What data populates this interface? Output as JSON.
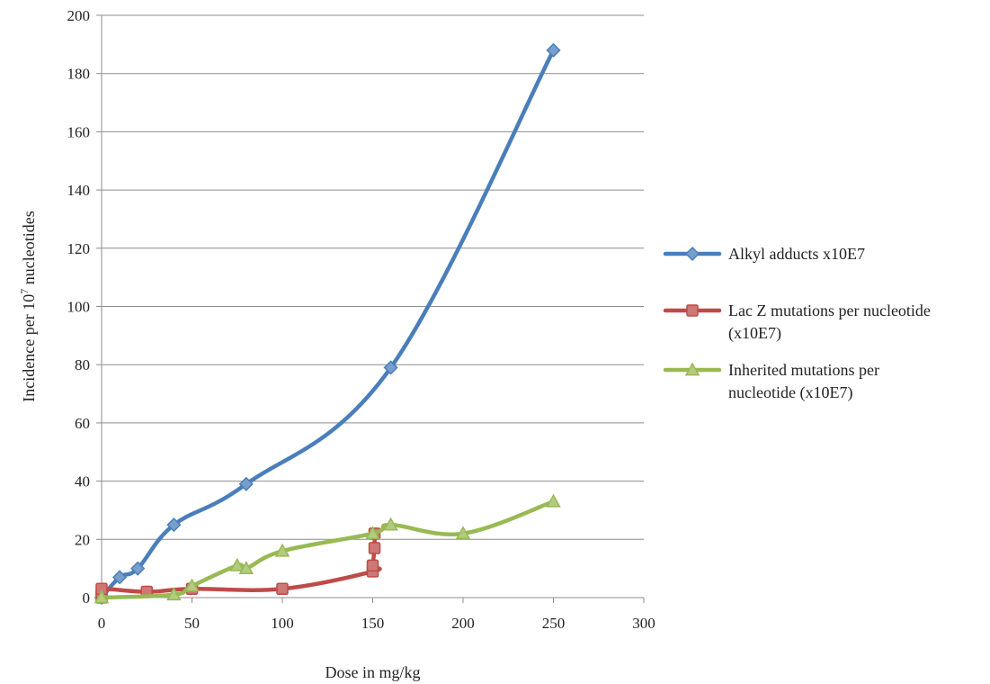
{
  "chart_data": {
    "type": "line",
    "title": "",
    "xlabel": "Dose in mg/kg",
    "ylabel": {
      "prefix": "Incidence per 10",
      "superscript": "7",
      "suffix": " nucleotides"
    },
    "xlim": [
      0,
      300
    ],
    "ylim": [
      0,
      200
    ],
    "xticks": [
      0,
      50,
      100,
      150,
      200,
      250,
      300
    ],
    "yticks": [
      0,
      20,
      40,
      60,
      80,
      100,
      120,
      140,
      160,
      180,
      200
    ],
    "grid": "horizontal",
    "legend_position": "right",
    "series": [
      {
        "name": "Alkyl adducts x10E7",
        "color": "#4a7ebb",
        "marker": "diamond",
        "x": [
          0,
          10,
          20,
          40,
          80,
          160,
          250
        ],
        "y": [
          0,
          7,
          10,
          25,
          39,
          79,
          188
        ]
      },
      {
        "name": "Lac Z mutations per nucleotide (x10E7)",
        "legend_lines": [
          "Lac Z mutations per nucleotide",
          "(x10E7)"
        ],
        "color": "#be4b48",
        "marker": "square",
        "x": [
          0,
          0,
          0,
          25,
          50,
          100,
          150,
          150,
          151,
          151
        ],
        "y": [
          0,
          1,
          3,
          2,
          3,
          3,
          9,
          11,
          17,
          22
        ]
      },
      {
        "name": "Inherited mutations per nucleotide (x10E7)",
        "legend_lines": [
          "Inherited mutations per",
          "nucleotide (x10E7)"
        ],
        "color": "#98b954",
        "marker": "triangle",
        "x": [
          0,
          40,
          50,
          75,
          80,
          100,
          150,
          160,
          200,
          250
        ],
        "y": [
          0,
          1,
          4,
          11,
          10,
          16,
          22,
          25,
          22,
          33
        ]
      }
    ]
  }
}
